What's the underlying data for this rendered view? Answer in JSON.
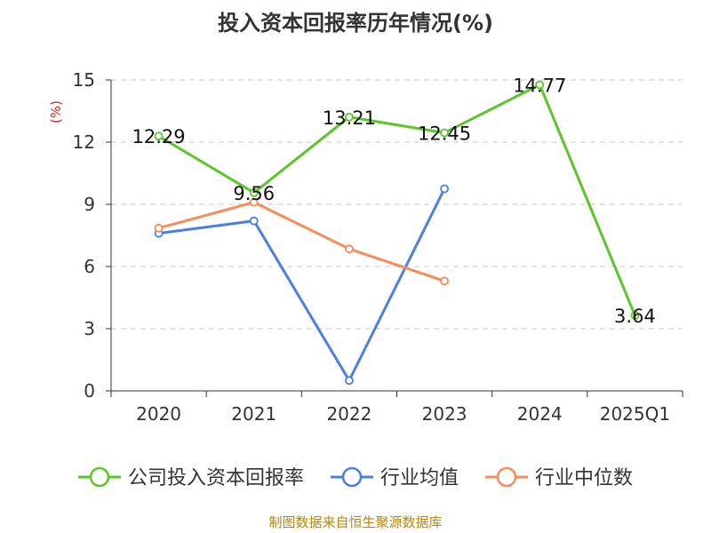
{
  "chart_data": {
    "type": "line",
    "title": "投入资本回报率历年情况(%)",
    "ylabel": "(%)",
    "categories": [
      "2020",
      "2021",
      "2022",
      "2023",
      "2024",
      "2025Q1"
    ],
    "ylim": [
      0,
      15
    ],
    "yticks": [
      0,
      3,
      6,
      9,
      12,
      15
    ],
    "grid": true,
    "legend_position": "bottom",
    "series": [
      {
        "name": "公司投入资本回报率",
        "color": "#5cc52a",
        "values": [
          12.29,
          9.56,
          13.21,
          12.45,
          14.77,
          3.64
        ],
        "labels": [
          "12.29",
          "9.56",
          "13.21",
          "12.45",
          "14.77",
          "3.64"
        ]
      },
      {
        "name": "行业均值",
        "color": "#4c7fe0",
        "values": [
          7.6,
          8.2,
          0.5,
          9.75,
          null,
          null
        ]
      },
      {
        "name": "行业中位数",
        "color": "#f78c5a",
        "values": [
          7.85,
          9.1,
          6.85,
          5.3,
          null,
          null
        ]
      }
    ]
  },
  "source": "制图数据来自恒生聚源数据库"
}
